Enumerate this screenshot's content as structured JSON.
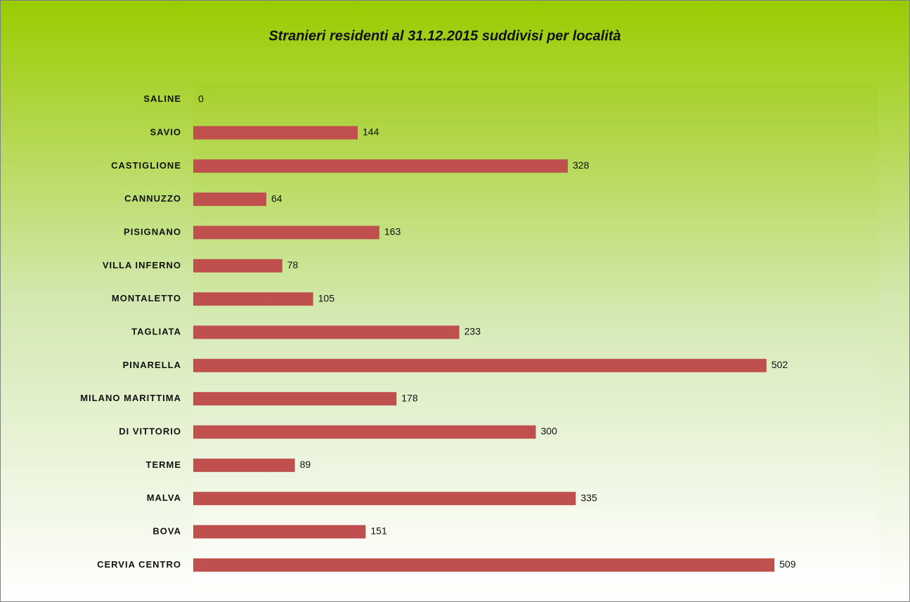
{
  "chart_data": {
    "type": "bar",
    "orientation": "horizontal",
    "title": "Stranieri residenti al 31.12.2015 suddivisi per località",
    "categories": [
      "SALINE",
      "SAVIO",
      "CASTIGLIONE",
      "CANNUZZO",
      "PISIGNANO",
      "VILLA INFERNO",
      "MONTALETTO",
      "TAGLIATA",
      "PINARELLA",
      "MILANO MARITTIMA",
      "DI VITTORIO",
      "TERME",
      "MALVA",
      "BOVA",
      "CERVIA CENTRO"
    ],
    "values": [
      0,
      144,
      328,
      64,
      163,
      78,
      105,
      233,
      502,
      178,
      300,
      89,
      335,
      151,
      509
    ],
    "color": "#c0504d",
    "xlim": [
      0,
      600
    ]
  }
}
